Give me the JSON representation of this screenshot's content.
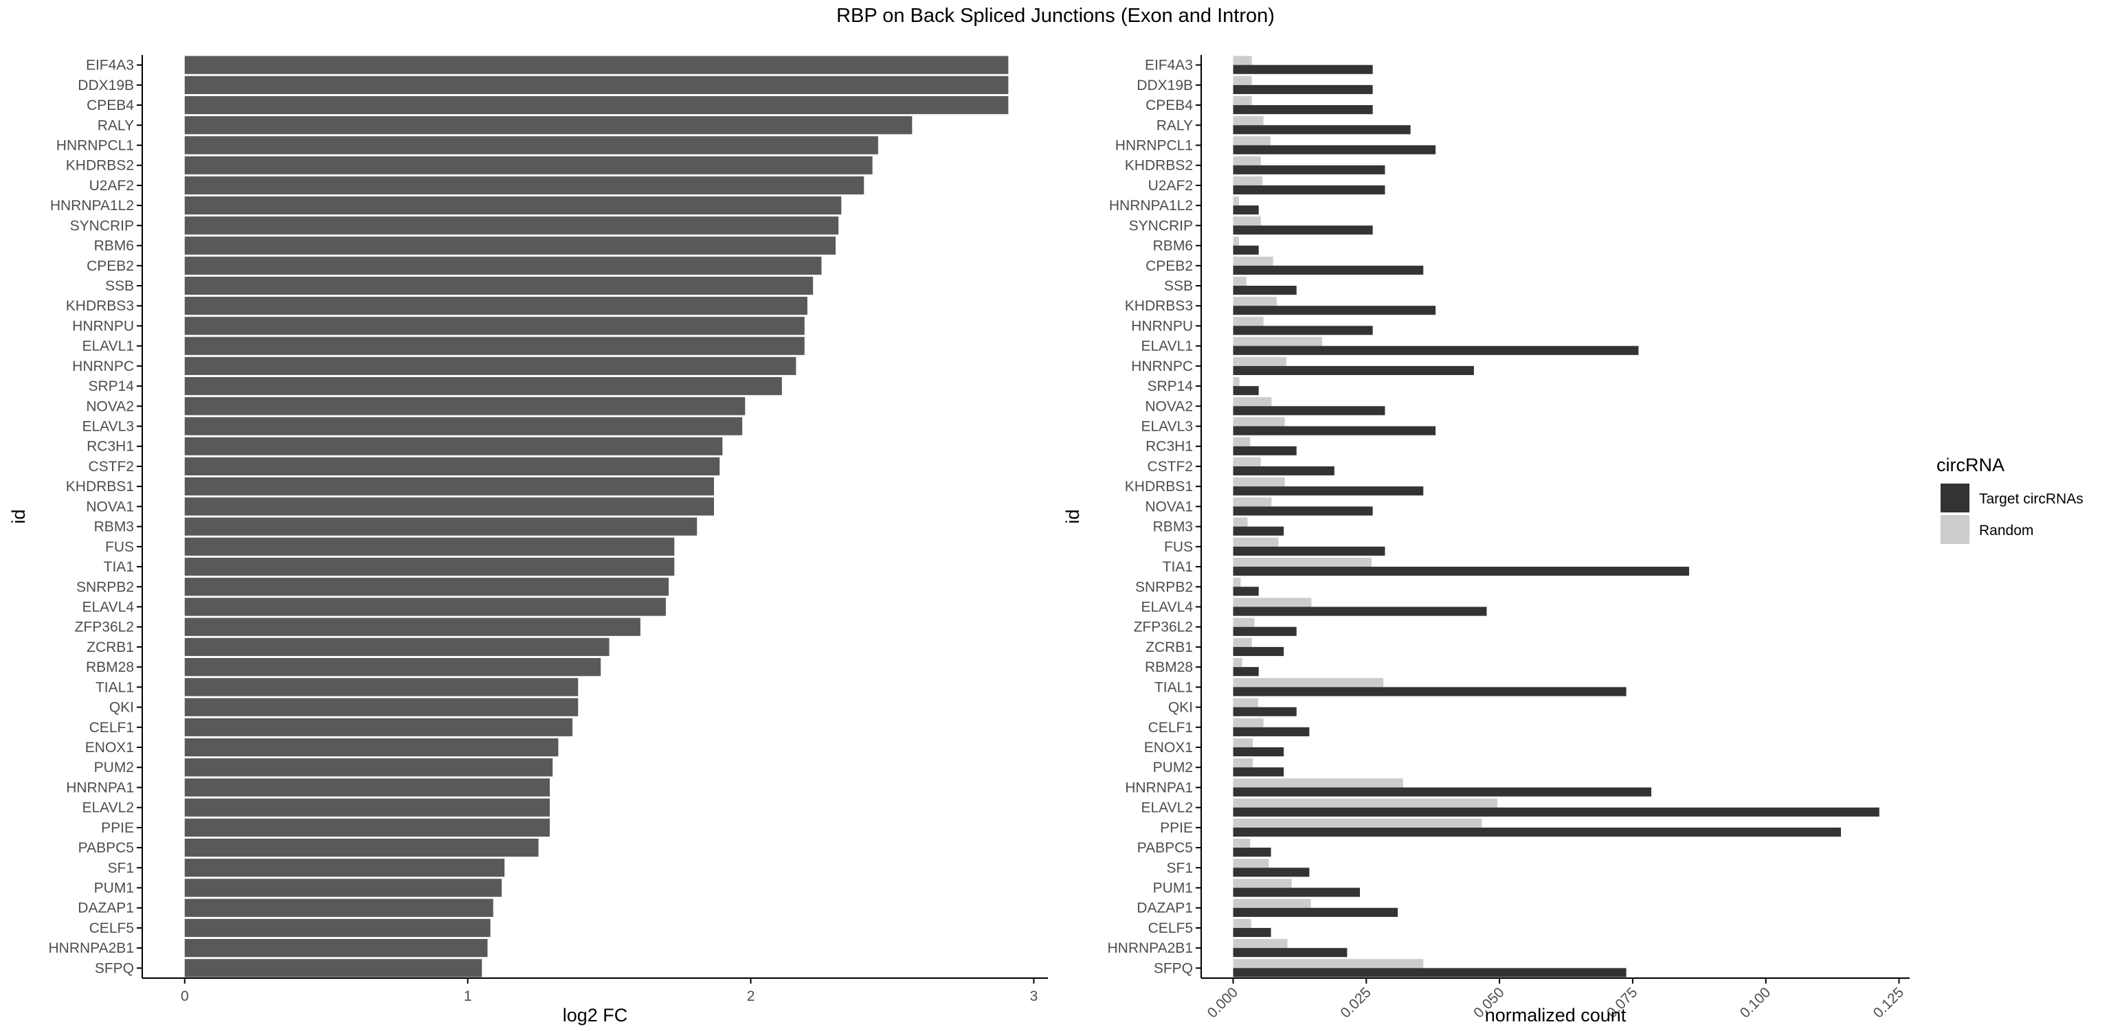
{
  "title": "RBP on Back Spliced Junctions (Exon and Intron)",
  "colors": {
    "bar_left": "#595959",
    "target": "#333333",
    "random": "#cccccc",
    "axis": "#000000",
    "text": "#4d4d4d"
  },
  "chart_data": [
    {
      "type": "bar",
      "orientation": "horizontal",
      "xlabel": "log2 FC",
      "ylabel": "id",
      "xlim": [
        -0.15,
        3.05
      ],
      "xticks": [
        0,
        1,
        2,
        3
      ],
      "categories": [
        "EIF4A3",
        "DDX19B",
        "CPEB4",
        "RALY",
        "HNRNPCL1",
        "KHDRBS2",
        "U2AF2",
        "HNRNPA1L2",
        "SYNCRIP",
        "RBM6",
        "CPEB2",
        "SSB",
        "KHDRBS3",
        "HNRNPU",
        "ELAVL1",
        "HNRNPC",
        "SRP14",
        "NOVA2",
        "ELAVL3",
        "RC3H1",
        "CSTF2",
        "KHDRBS1",
        "NOVA1",
        "RBM3",
        "FUS",
        "TIA1",
        "SNRPB2",
        "ELAVL4",
        "ZFP36L2",
        "ZCRB1",
        "RBM28",
        "TIAL1",
        "QKI",
        "CELF1",
        "ENOX1",
        "PUM2",
        "HNRNPA1",
        "ELAVL2",
        "PPIE",
        "PABPC5",
        "SF1",
        "PUM1",
        "DAZAP1",
        "CELF5",
        "HNRNPA2B1",
        "SFPQ"
      ],
      "values": [
        2.91,
        2.91,
        2.91,
        2.57,
        2.45,
        2.43,
        2.4,
        2.32,
        2.31,
        2.3,
        2.25,
        2.22,
        2.2,
        2.19,
        2.19,
        2.16,
        2.11,
        1.98,
        1.97,
        1.9,
        1.89,
        1.87,
        1.87,
        1.81,
        1.73,
        1.73,
        1.71,
        1.7,
        1.61,
        1.5,
        1.47,
        1.39,
        1.39,
        1.37,
        1.32,
        1.3,
        1.29,
        1.29,
        1.29,
        1.25,
        1.13,
        1.12,
        1.09,
        1.08,
        1.07,
        1.05
      ]
    },
    {
      "type": "bar",
      "orientation": "horizontal",
      "grouped": true,
      "xlabel": "normalized count",
      "ylabel": "id",
      "xlim": [
        -0.006,
        0.127
      ],
      "xticks": [
        0.0,
        0.025,
        0.05,
        0.075,
        0.1,
        0.125
      ],
      "xtick_labels": [
        "0.000",
        "0.025",
        "0.050",
        "0.075",
        "0.100",
        "0.125"
      ],
      "legend": {
        "title": "circRNA",
        "position": "right"
      },
      "categories": [
        "EIF4A3",
        "DDX19B",
        "CPEB4",
        "RALY",
        "HNRNPCL1",
        "KHDRBS2",
        "U2AF2",
        "HNRNPA1L2",
        "SYNCRIP",
        "RBM6",
        "CPEB2",
        "SSB",
        "KHDRBS3",
        "HNRNPU",
        "ELAVL1",
        "HNRNPC",
        "SRP14",
        "NOVA2",
        "ELAVL3",
        "RC3H1",
        "CSTF2",
        "KHDRBS1",
        "NOVA1",
        "RBM3",
        "FUS",
        "TIA1",
        "SNRPB2",
        "ELAVL4",
        "ZFP36L2",
        "ZCRB1",
        "RBM28",
        "TIAL1",
        "QKI",
        "CELF1",
        "ENOX1",
        "PUM2",
        "HNRNPA1",
        "ELAVL2",
        "PPIE",
        "PABPC5",
        "SF1",
        "PUM1",
        "DAZAP1",
        "CELF5",
        "HNRNPA2B1",
        "SFPQ"
      ],
      "series": [
        {
          "name": "Target circRNAs",
          "values": [
            0.0262,
            0.0262,
            0.0262,
            0.0333,
            0.038,
            0.0285,
            0.0285,
            0.0048,
            0.0262,
            0.0048,
            0.0357,
            0.0119,
            0.038,
            0.0262,
            0.0761,
            0.0452,
            0.0048,
            0.0285,
            0.038,
            0.0119,
            0.019,
            0.0357,
            0.0262,
            0.0095,
            0.0285,
            0.0856,
            0.0048,
            0.0476,
            0.0119,
            0.0095,
            0.0048,
            0.0738,
            0.0119,
            0.0143,
            0.0095,
            0.0095,
            0.0785,
            0.1213,
            0.1141,
            0.0071,
            0.0143,
            0.0238,
            0.0309,
            0.0071,
            0.0214,
            0.0738
          ]
        },
        {
          "name": "Random",
          "values": [
            0.0035,
            0.0035,
            0.0035,
            0.0057,
            0.007,
            0.0052,
            0.0055,
            0.0011,
            0.0052,
            0.0011,
            0.0075,
            0.0025,
            0.0082,
            0.0057,
            0.0167,
            0.01,
            0.0012,
            0.0072,
            0.0097,
            0.0032,
            0.0052,
            0.0097,
            0.0072,
            0.0027,
            0.0085,
            0.026,
            0.0014,
            0.0147,
            0.004,
            0.0035,
            0.0017,
            0.0282,
            0.0047,
            0.0057,
            0.0037,
            0.0037,
            0.0319,
            0.0496,
            0.0467,
            0.0032,
            0.0067,
            0.011,
            0.0146,
            0.0034,
            0.0102,
            0.0357
          ]
        }
      ]
    }
  ]
}
